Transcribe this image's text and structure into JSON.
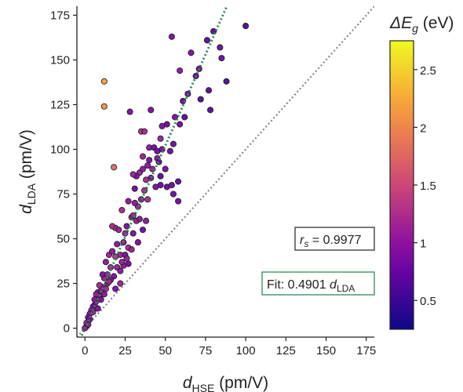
{
  "chart_data": {
    "type": "scatter",
    "xlabel": {
      "main": "d",
      "sub": "HSE",
      "unit": " (pm/V)"
    },
    "ylabel": {
      "main": "d",
      "sub": "LDA",
      "unit": " (pm/V)"
    },
    "xlim": [
      -5,
      180
    ],
    "ylim": [
      -5,
      180
    ],
    "xticks": [
      0,
      25,
      50,
      75,
      100,
      125,
      150,
      175
    ],
    "yticks": [
      0,
      25,
      50,
      75,
      100,
      125,
      150,
      175
    ],
    "colorbar": {
      "label": {
        "main": "ΔE",
        "sub": "g",
        "unit": " (eV)"
      },
      "range": [
        0.25,
        2.75
      ],
      "ticks": [
        0.5,
        1,
        1.5,
        2,
        2.5
      ],
      "tick_labels": [
        "0.5",
        "1",
        "1.5",
        "2",
        "2.5"
      ],
      "colormap": "plasma"
    },
    "annotations": {
      "rs": {
        "symbol": "r",
        "sub": "s",
        "text": " = 0.9977"
      },
      "fit": {
        "text": "Fit: 0.4901 ",
        "var": "d",
        "sub": "LDA"
      }
    },
    "lines": {
      "identity": {
        "slope": 1,
        "color": "#888888",
        "style": "dotted"
      },
      "fit": {
        "slope": 2.04,
        "color": "#2e8b57",
        "style": "dotted"
      }
    },
    "points": [
      [
        100,
        169,
        0.6
      ],
      [
        80,
        166,
        0.7
      ],
      [
        76,
        161,
        0.7
      ],
      [
        54,
        163,
        0.9
      ],
      [
        84,
        157,
        0.8
      ],
      [
        66,
        154,
        0.9
      ],
      [
        12,
        138,
        2.2
      ],
      [
        12,
        124,
        2.1
      ],
      [
        88,
        138,
        0.6
      ],
      [
        77,
        133,
        0.7
      ],
      [
        61,
        127,
        0.8
      ],
      [
        28,
        121,
        0.9
      ],
      [
        78,
        122,
        0.7
      ],
      [
        41,
        122,
        0.9
      ],
      [
        72,
        128,
        0.6
      ],
      [
        85,
        151,
        0.8
      ],
      [
        59,
        144,
        1.0
      ],
      [
        71,
        145,
        0.9
      ],
      [
        35,
        110,
        1.3
      ],
      [
        37,
        110,
        1.2
      ],
      [
        48,
        113,
        0.9
      ],
      [
        51,
        114,
        0.8
      ],
      [
        59,
        114,
        0.8
      ],
      [
        62,
        118,
        0.7
      ],
      [
        47,
        106,
        1.1
      ],
      [
        48,
        100,
        0.9
      ],
      [
        53,
        99,
        0.8
      ],
      [
        40,
        101,
        1.0
      ],
      [
        43,
        101,
        0.8
      ],
      [
        45,
        99,
        0.8
      ],
      [
        55,
        103,
        0.8
      ],
      [
        18,
        90,
        1.8
      ],
      [
        34,
        87,
        1.1
      ],
      [
        36,
        89,
        1.0
      ],
      [
        32,
        85,
        0.9
      ],
      [
        38,
        83,
        1.2
      ],
      [
        41,
        84,
        0.9
      ],
      [
        30,
        86,
        1.1
      ],
      [
        47,
        85,
        0.7
      ],
      [
        50,
        89,
        0.9
      ],
      [
        54,
        80,
        0.8
      ],
      [
        58,
        82,
        0.7
      ],
      [
        47,
        80,
        0.8
      ],
      [
        51,
        79,
        0.8
      ],
      [
        55,
        75,
        0.8
      ],
      [
        58,
        71,
        0.8
      ],
      [
        39,
        72,
        1.2
      ],
      [
        37,
        77,
        1.2
      ],
      [
        31,
        78,
        0.8
      ],
      [
        27,
        71,
        1.0
      ],
      [
        35,
        72,
        1.0
      ],
      [
        29,
        62,
        1.1
      ],
      [
        32,
        60,
        1.1
      ],
      [
        23,
        66,
        1.2
      ],
      [
        26,
        57,
        0.9
      ],
      [
        34,
        61,
        1.0
      ],
      [
        38,
        60,
        1.0
      ],
      [
        36,
        55,
        0.8
      ],
      [
        19,
        56,
        1.3
      ],
      [
        17,
        57,
        1.2
      ],
      [
        21,
        55,
        1.1
      ],
      [
        30,
        53,
        0.9
      ],
      [
        33,
        48,
        0.9
      ],
      [
        24,
        48,
        1.0
      ],
      [
        27,
        45,
        1.2
      ],
      [
        29,
        44,
        1.1
      ],
      [
        22,
        41,
        1.1
      ],
      [
        25,
        41,
        0.9
      ],
      [
        15,
        41,
        1.1
      ],
      [
        13,
        37,
        1.0
      ],
      [
        19,
        40,
        1.3
      ],
      [
        16,
        34,
        1.2
      ],
      [
        20,
        34,
        1.1
      ],
      [
        22,
        32,
        1.0
      ],
      [
        18,
        29,
        0.9
      ],
      [
        12,
        28,
        1.1
      ],
      [
        14,
        25,
        1.0
      ],
      [
        11,
        23,
        0.9
      ],
      [
        8,
        20,
        1.1
      ],
      [
        9,
        18,
        1.0
      ],
      [
        10,
        16,
        0.9
      ],
      [
        7,
        15,
        1.2
      ],
      [
        6,
        13,
        1.0
      ],
      [
        5,
        12,
        0.9
      ],
      [
        4,
        10,
        1.1
      ],
      [
        3,
        8,
        1.0
      ],
      [
        2,
        6,
        0.9
      ],
      [
        1,
        3,
        1.2
      ],
      [
        1,
        1,
        1.0
      ],
      [
        0,
        0,
        1.0
      ],
      [
        16,
        27,
        1.0
      ],
      [
        22,
        25,
        1.1
      ],
      [
        19,
        22,
        0.9
      ],
      [
        13,
        22,
        1.2
      ],
      [
        11,
        30,
        0.9
      ],
      [
        24,
        35,
        1.0
      ],
      [
        26,
        39,
        1.1
      ],
      [
        27,
        36,
        0.8
      ],
      [
        33,
        68,
        1.1
      ],
      [
        31,
        70,
        1.0
      ],
      [
        44,
        79,
        0.9
      ],
      [
        40,
        94,
        0.9
      ],
      [
        45,
        95,
        1.0
      ],
      [
        42,
        89,
        1.1
      ],
      [
        30,
        63,
        1.2
      ],
      [
        25,
        53,
        1.1
      ],
      [
        20,
        47,
        1.0
      ],
      [
        23,
        37,
        1.1
      ],
      [
        17,
        43,
        1.0
      ],
      [
        14,
        30,
        1.1
      ],
      [
        9,
        24,
        1.2
      ],
      [
        7,
        19,
        1.1
      ],
      [
        10,
        21,
        1.0
      ],
      [
        5,
        9,
        1.1
      ],
      [
        3,
        5,
        0.9
      ],
      [
        6,
        16,
        1.0
      ],
      [
        2,
        2,
        1.1
      ],
      [
        8,
        11,
        0.9
      ],
      [
        12,
        19,
        1.0
      ],
      [
        15,
        26,
        1.2
      ],
      [
        36,
        96,
        1.1
      ],
      [
        39,
        91,
        1.0
      ],
      [
        46,
        93,
        0.8
      ],
      [
        56,
        118,
        0.9
      ],
      [
        64,
        131,
        0.8
      ],
      [
        69,
        141,
        0.7
      ]
    ]
  }
}
